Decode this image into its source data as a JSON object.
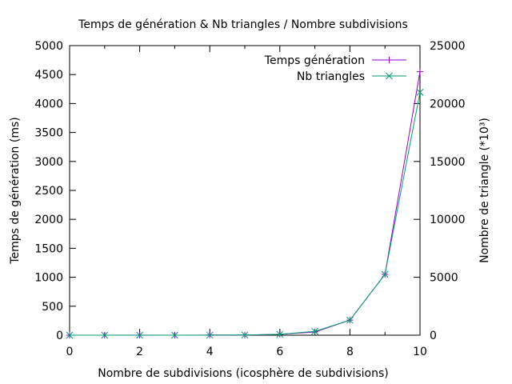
{
  "chart_data": {
    "type": "line",
    "title": "Temps de génération & Nb triangles / Nombre subdivisions",
    "xlabel": "Nombre de subdivisions (icosphère de subdivisions)",
    "ylabel": "Temps de génération (ms)",
    "y2label": "Nombre de triangle (*10³)",
    "xlim": [
      0,
      10
    ],
    "ylim": [
      0,
      5000
    ],
    "y2lim": [
      0,
      25000
    ],
    "x_ticks": [
      0,
      2,
      4,
      6,
      8,
      10
    ],
    "y_ticks": [
      0,
      500,
      1000,
      1500,
      2000,
      2500,
      3000,
      3500,
      4000,
      4500,
      5000
    ],
    "y2_ticks": [
      0,
      5000,
      10000,
      15000,
      20000,
      25000
    ],
    "legend_position": "top-right",
    "grid": false,
    "x": [
      0,
      1,
      2,
      3,
      4,
      5,
      6,
      7,
      8,
      9,
      10
    ],
    "series": [
      {
        "name": "Temps génération",
        "axis": "left",
        "color": "#9400d3",
        "marker": "plus",
        "values": [
          0,
          0,
          2,
          0,
          3,
          1,
          15,
          55,
          260,
          1050,
          4550
        ]
      },
      {
        "name": "Nb triangles",
        "axis": "right",
        "color": "#009e73",
        "marker": "cross",
        "values": [
          0,
          0,
          1,
          1,
          5,
          20,
          80,
          330,
          1300,
          5250,
          20970
        ]
      }
    ]
  }
}
